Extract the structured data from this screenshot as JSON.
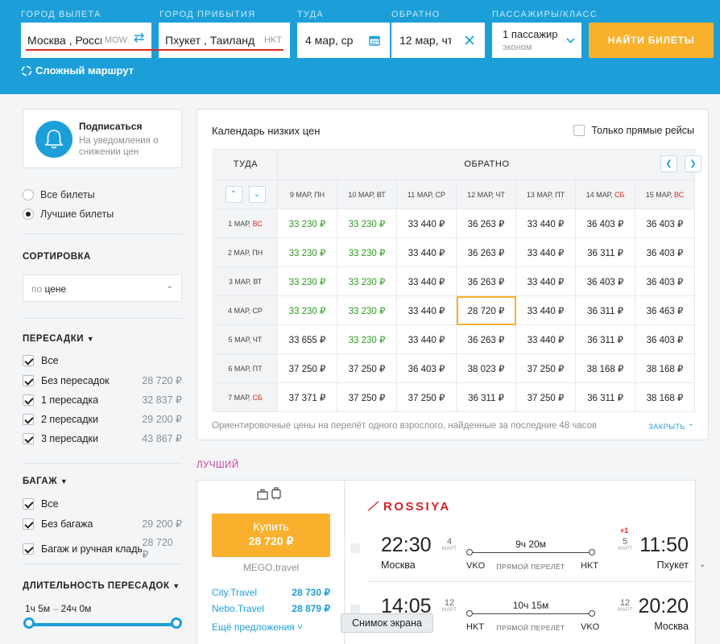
{
  "header": {
    "labels": {
      "from": "ГОРОД ВЫЛЕТА",
      "to": "ГОРОД ПРИБЫТИЯ",
      "there": "ТУДА",
      "back": "ОБРАТНО",
      "pax": "ПАССАЖИРЫ/КЛАСС"
    },
    "from_value": "Москва , Россия",
    "from_code": "MOW",
    "to_value": "Пхукет , Таиланд",
    "to_code": "HKT",
    "date_there": "4 мар, ср",
    "date_back": "12 мар, чт",
    "pax_value": "1 пассажир",
    "pax_class": "эконом",
    "search_button": "НАЙТИ БИЛЕТЫ",
    "complex_route": "Сложный маршрут"
  },
  "sidebar": {
    "subscribe_title": "Подписаться",
    "subscribe_desc": "На уведомления о снижении цен",
    "radio_all": "Все билеты",
    "radio_best": "Лучшие билеты",
    "sort_title": "СОРТИРОВКА",
    "sort_prefix": "по",
    "sort_value": "цене",
    "transfers_title": "ПЕРЕСАДКИ",
    "transfers": [
      {
        "label": "Все",
        "price": ""
      },
      {
        "label": "Без пересадок",
        "price": "28 720 ₽"
      },
      {
        "label": "1 пересадка",
        "price": "32 837 ₽"
      },
      {
        "label": "2 пересадки",
        "price": "29 200 ₽"
      },
      {
        "label": "3 пересадки",
        "price": "43 867 ₽"
      }
    ],
    "baggage_title": "БАГАЖ",
    "baggage": [
      {
        "label": "Все",
        "price": ""
      },
      {
        "label": "Без багажа",
        "price": "29 200 ₽"
      },
      {
        "label": "Багаж и ручная кладь",
        "price": "28 720 ₽"
      }
    ],
    "duration_title": "ДЛИТЕЛЬНОСТЬ ПЕРЕСАДОК",
    "duration_from": "1ч 5м",
    "duration_sep": "–",
    "duration_to": "24ч 0м"
  },
  "calendar": {
    "title": "Календарь низких цен",
    "direct_only": "Только прямые рейсы",
    "there_label": "ТУДА",
    "back_label": "ОБРАТНО",
    "cols": [
      {
        "d": "9 МАР, ",
        "w": "ПН",
        "weekend": false
      },
      {
        "d": "10 МАР, ",
        "w": "ВТ",
        "weekend": false
      },
      {
        "d": "11 МАР, ",
        "w": "СР",
        "weekend": false
      },
      {
        "d": "12 МАР, ",
        "w": "ЧТ",
        "weekend": false
      },
      {
        "d": "13 МАР, ",
        "w": "ПТ",
        "weekend": false
      },
      {
        "d": "14 МАР, ",
        "w": "СБ",
        "weekend": true
      },
      {
        "d": "15 МАР, ",
        "w": "ВС",
        "weekend": true
      }
    ],
    "rows": [
      {
        "d": "1 МАР, ",
        "w": "ВС",
        "weekend": true,
        "cells": [
          "33 230 ₽",
          "33 230 ₽",
          "33 440 ₽",
          "36 263 ₽",
          "33 440 ₽",
          "36 403 ₽",
          "36 403 ₽"
        ],
        "green": [
          0,
          1
        ]
      },
      {
        "d": "2 МАР, ",
        "w": "ПН",
        "weekend": false,
        "cells": [
          "33 230 ₽",
          "33 230 ₽",
          "33 440 ₽",
          "36 263 ₽",
          "33 440 ₽",
          "36 311 ₽",
          "36 403 ₽"
        ],
        "green": [
          0,
          1
        ]
      },
      {
        "d": "3 МАР, ",
        "w": "ВТ",
        "weekend": false,
        "cells": [
          "33 230 ₽",
          "33 230 ₽",
          "33 440 ₽",
          "36 263 ₽",
          "33 440 ₽",
          "36 403 ₽",
          "36 403 ₽"
        ],
        "green": [
          0,
          1
        ]
      },
      {
        "d": "4 МАР, ",
        "w": "СР",
        "weekend": false,
        "cells": [
          "33 230 ₽",
          "33 230 ₽",
          "33 440 ₽",
          "28 720 ₽",
          "33 440 ₽",
          "36 311 ₽",
          "36 463 ₽"
        ],
        "green": [
          0,
          1
        ],
        "selected": 3
      },
      {
        "d": "5 МАР, ",
        "w": "ЧТ",
        "weekend": false,
        "cells": [
          "33 655 ₽",
          "33 230 ₽",
          "33 440 ₽",
          "36 263 ₽",
          "33 440 ₽",
          "36 311 ₽",
          "36 403 ₽"
        ],
        "green": [
          1
        ]
      },
      {
        "d": "6 МАР, ",
        "w": "ПТ",
        "weekend": false,
        "cells": [
          "37 250 ₽",
          "37 250 ₽",
          "36 403 ₽",
          "38 023 ₽",
          "37 250 ₽",
          "38 168 ₽",
          "38 168 ₽"
        ],
        "green": []
      },
      {
        "d": "7 МАР, ",
        "w": "СБ",
        "weekend": true,
        "cells": [
          "37 371 ₽",
          "37 250 ₽",
          "37 250 ₽",
          "36 311 ₽",
          "37 250 ₽",
          "36 311 ₽",
          "38 168 ₽"
        ],
        "green": []
      }
    ],
    "footnote": "Ориентировочные цены на перелёт одного взрослого, найденные за последние 48 часов",
    "collapse": "ЗАКРЫТЬ ⌃"
  },
  "best": {
    "label": "ЛУЧШИЙ",
    "buy_line1": "Купить",
    "buy_line2": "28 720 ₽",
    "agency": "MEGO.travel",
    "agents": [
      {
        "name": "City.Travel",
        "price": "28 730 ₽"
      },
      {
        "name": "Nebo.Travel",
        "price": "28 879 ₽"
      }
    ],
    "more_offers": "Ещё предложения ˅",
    "airline": "ROSSIYA",
    "legs": [
      {
        "dep_time": "22:30",
        "dep_day": "4",
        "dep_month": "МАРТ",
        "dep_city": "Москва",
        "duration": "9ч 20м",
        "ap_from": "VKO",
        "ap_to": "HKT",
        "kind": "ПРЯМОЙ ПЕРЕЛЁТ",
        "arr_day": "5",
        "arr_month": "МАРТ",
        "arr_time": "11:50",
        "arr_city": "Пхукет"
      },
      {
        "dep_time": "14:05",
        "dep_day": "12",
        "dep_month": "МАРТ",
        "dep_city": "Пхукет",
        "duration": "10ч 15м",
        "ap_from": "HKT",
        "ap_to": "VKO",
        "kind": "ПРЯМОЙ ПЕРЕЛЁТ",
        "arr_day": "12",
        "arr_month": "МАРТ",
        "arr_time": "20:20",
        "arr_city": "Москва"
      }
    ],
    "plus_day": "+1"
  },
  "tooltip": "Снимок экрана",
  "colors": {
    "brand": "#1c9fd9",
    "accent": "#f9b12d",
    "green": "#2e9a1f",
    "weekend": "#e0271e"
  }
}
